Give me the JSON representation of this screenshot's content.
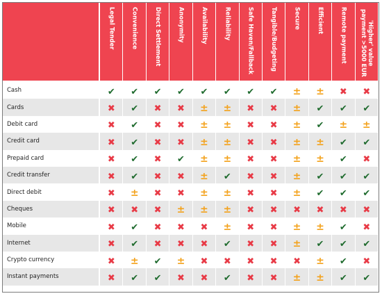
{
  "colors": {
    "header_bg": "#ef4450",
    "check": "#1f6b2e",
    "cross": "#e83a46",
    "partial": "#f3a21c",
    "row_alt": "#e7e7e7"
  },
  "symbols": {
    "check": "✔",
    "cross": "✖",
    "partial": "±"
  },
  "columns": [
    "Legal Tender",
    "Convenience",
    "Direct Settlement",
    "Anonymity",
    "Availability",
    "Reliability",
    "Safe Haven/Fallback",
    "Tangible/Budgeting",
    "Secure",
    "Efficient",
    "Remote payment",
    "'Higher' value payment >5000 EUR"
  ],
  "rows": [
    {
      "label": "Cash",
      "cells": [
        "check",
        "check",
        "check",
        "check",
        "check",
        "check",
        "check",
        "check",
        "partial",
        "partial",
        "cross",
        "cross"
      ]
    },
    {
      "label": "Cards",
      "cells": [
        "cross",
        "check",
        "cross",
        "cross",
        "partial",
        "partial",
        "cross",
        "cross",
        "partial",
        "check",
        "check",
        "check"
      ]
    },
    {
      "label": "Debit card",
      "cells": [
        "cross",
        "check",
        "cross",
        "cross",
        "partial",
        "partial",
        "cross",
        "cross",
        "partial",
        "check",
        "partial",
        "partial"
      ]
    },
    {
      "label": "Credit card",
      "cells": [
        "cross",
        "check",
        "cross",
        "cross",
        "partial",
        "partial",
        "cross",
        "cross",
        "partial",
        "partial",
        "check",
        "check"
      ]
    },
    {
      "label": "Prepaid card",
      "cells": [
        "cross",
        "check",
        "cross",
        "check",
        "partial",
        "partial",
        "cross",
        "cross",
        "partial",
        "partial",
        "check",
        "cross"
      ]
    },
    {
      "label": "Credit transfer",
      "cells": [
        "cross",
        "check",
        "cross",
        "cross",
        "partial",
        "check",
        "cross",
        "cross",
        "partial",
        "check",
        "check",
        "check"
      ]
    },
    {
      "label": "Direct debit",
      "cells": [
        "cross",
        "partial",
        "cross",
        "cross",
        "partial",
        "partial",
        "cross",
        "cross",
        "partial",
        "check",
        "check",
        "check"
      ]
    },
    {
      "label": "Cheques",
      "cells": [
        "cross",
        "cross",
        "cross",
        "partial",
        "partial",
        "partial",
        "cross",
        "cross",
        "cross",
        "cross",
        "cross",
        "cross"
      ]
    },
    {
      "label": "Mobile",
      "cells": [
        "cross",
        "check",
        "cross",
        "cross",
        "cross",
        "partial",
        "cross",
        "cross",
        "partial",
        "partial",
        "check",
        "cross"
      ]
    },
    {
      "label": "Internet",
      "cells": [
        "cross",
        "check",
        "cross",
        "cross",
        "cross",
        "check",
        "cross",
        "cross",
        "partial",
        "check",
        "check",
        "check"
      ]
    },
    {
      "label": "Crypto currency",
      "cells": [
        "cross",
        "partial",
        "check",
        "partial",
        "cross",
        "cross",
        "cross",
        "cross",
        "cross",
        "partial",
        "check",
        "cross"
      ]
    },
    {
      "label": "Instant payments",
      "cells": [
        "cross",
        "check",
        "check",
        "cross",
        "cross",
        "check",
        "cross",
        "cross",
        "partial",
        "partial",
        "check",
        "check"
      ]
    }
  ]
}
